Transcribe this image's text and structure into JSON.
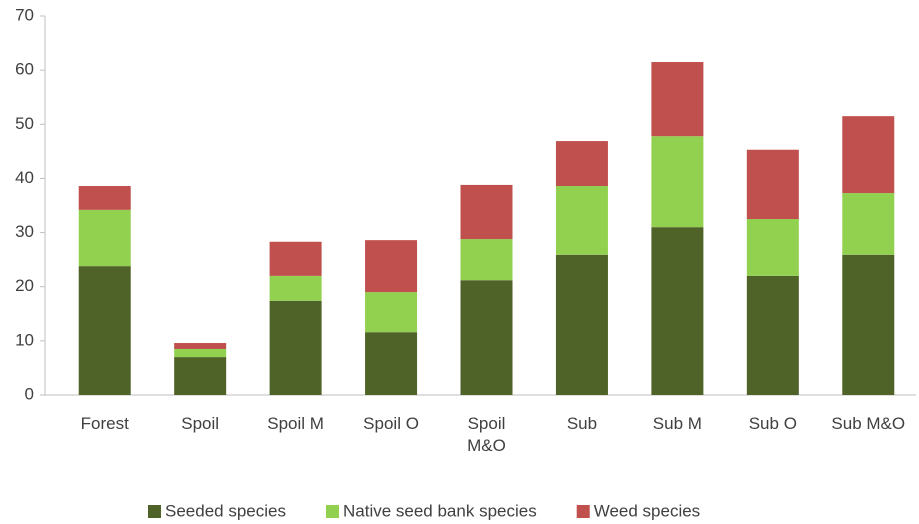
{
  "chart_data": {
    "type": "stacked_bar",
    "categories": [
      "Forest",
      "Spoil",
      "Spoil M",
      "Spoil O",
      "Spoil\nM&O",
      "Sub",
      "Sub M",
      "Sub O",
      "Sub M&O"
    ],
    "series": [
      {
        "name": "Seeded species",
        "color": "#4f6228",
        "values": [
          23.8,
          7.0,
          17.4,
          11.6,
          21.2,
          25.9,
          31.0,
          22.0,
          25.9
        ]
      },
      {
        "name": "Native seed bank species",
        "color": "#92d050",
        "values": [
          10.4,
          1.5,
          4.6,
          7.4,
          7.6,
          12.7,
          16.8,
          10.5,
          11.4
        ]
      },
      {
        "name": "Weed species",
        "color": "#c0504d",
        "values": [
          4.4,
          1.1,
          6.3,
          9.6,
          10.0,
          8.3,
          13.7,
          12.8,
          14.2
        ]
      }
    ],
    "ylim": [
      0,
      70
    ],
    "yticks": [
      0,
      10,
      20,
      30,
      40,
      50,
      60,
      70
    ],
    "grid": false,
    "legend": "bottom"
  }
}
